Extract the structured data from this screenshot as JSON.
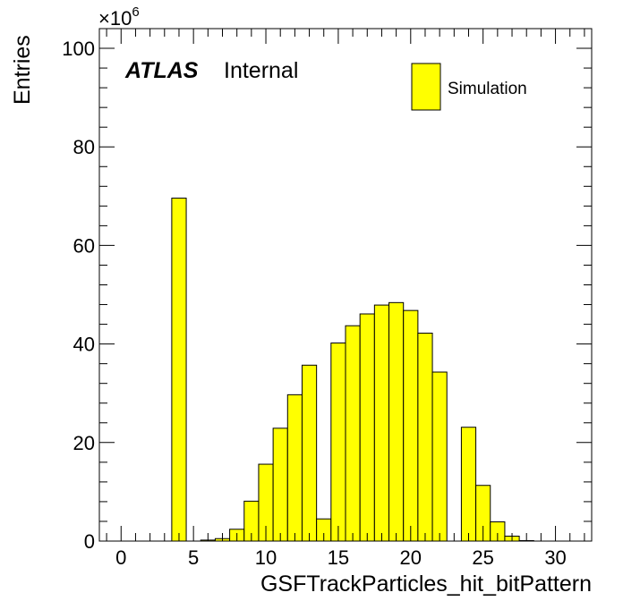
{
  "chart_data": {
    "type": "bar",
    "style": "histogram",
    "fill_color": "#ffff00",
    "edge_color": "#000000",
    "xlabel": "GSFTrackParticles_hit_bitPattern",
    "ylabel": "Entries",
    "y_multiplier": "×10",
    "y_multiplier_exp": "6",
    "xlim": [
      -1.5,
      32.5
    ],
    "ylim": [
      0,
      104
    ],
    "bin_width": 1,
    "bins": [
      {
        "x": 4,
        "value": 69.6
      },
      {
        "x": 5,
        "value": 0
      },
      {
        "x": 6,
        "value": 0.2
      },
      {
        "x": 7,
        "value": 0.5
      },
      {
        "x": 8,
        "value": 2.4
      },
      {
        "x": 9,
        "value": 8.1
      },
      {
        "x": 10,
        "value": 15.6
      },
      {
        "x": 11,
        "value": 22.9
      },
      {
        "x": 12,
        "value": 29.7
      },
      {
        "x": 13,
        "value": 35.7
      },
      {
        "x": 14,
        "value": 4.5
      },
      {
        "x": 15,
        "value": 40.2
      },
      {
        "x": 16,
        "value": 43.7
      },
      {
        "x": 17,
        "value": 46.1
      },
      {
        "x": 18,
        "value": 47.9
      },
      {
        "x": 19,
        "value": 48.4
      },
      {
        "x": 20,
        "value": 46.8
      },
      {
        "x": 21,
        "value": 42.2
      },
      {
        "x": 22,
        "value": 34.3
      },
      {
        "x": 23,
        "value": 0
      },
      {
        "x": 24,
        "value": 23.1
      },
      {
        "x": 25,
        "value": 11.3
      },
      {
        "x": 26,
        "value": 3.9
      },
      {
        "x": 27,
        "value": 1.0
      },
      {
        "x": 28,
        "value": 0.1
      }
    ],
    "x_major_ticks": [
      0,
      5,
      10,
      15,
      20,
      25,
      30
    ],
    "x_tick_labels": [
      "0",
      "5",
      "10",
      "15",
      "20",
      "25",
      "30"
    ],
    "x_minor_step": 1,
    "y_major_ticks": [
      0,
      20,
      40,
      60,
      80,
      100
    ],
    "y_tick_labels": [
      "0",
      "20",
      "40",
      "60",
      "80",
      "100"
    ],
    "y_minor_step": 4,
    "legend": {
      "label": "Simulation",
      "position": "top-right"
    },
    "label": {
      "experiment": "ATLAS",
      "status": "Internal",
      "position": "top-left"
    },
    "grid": false
  }
}
